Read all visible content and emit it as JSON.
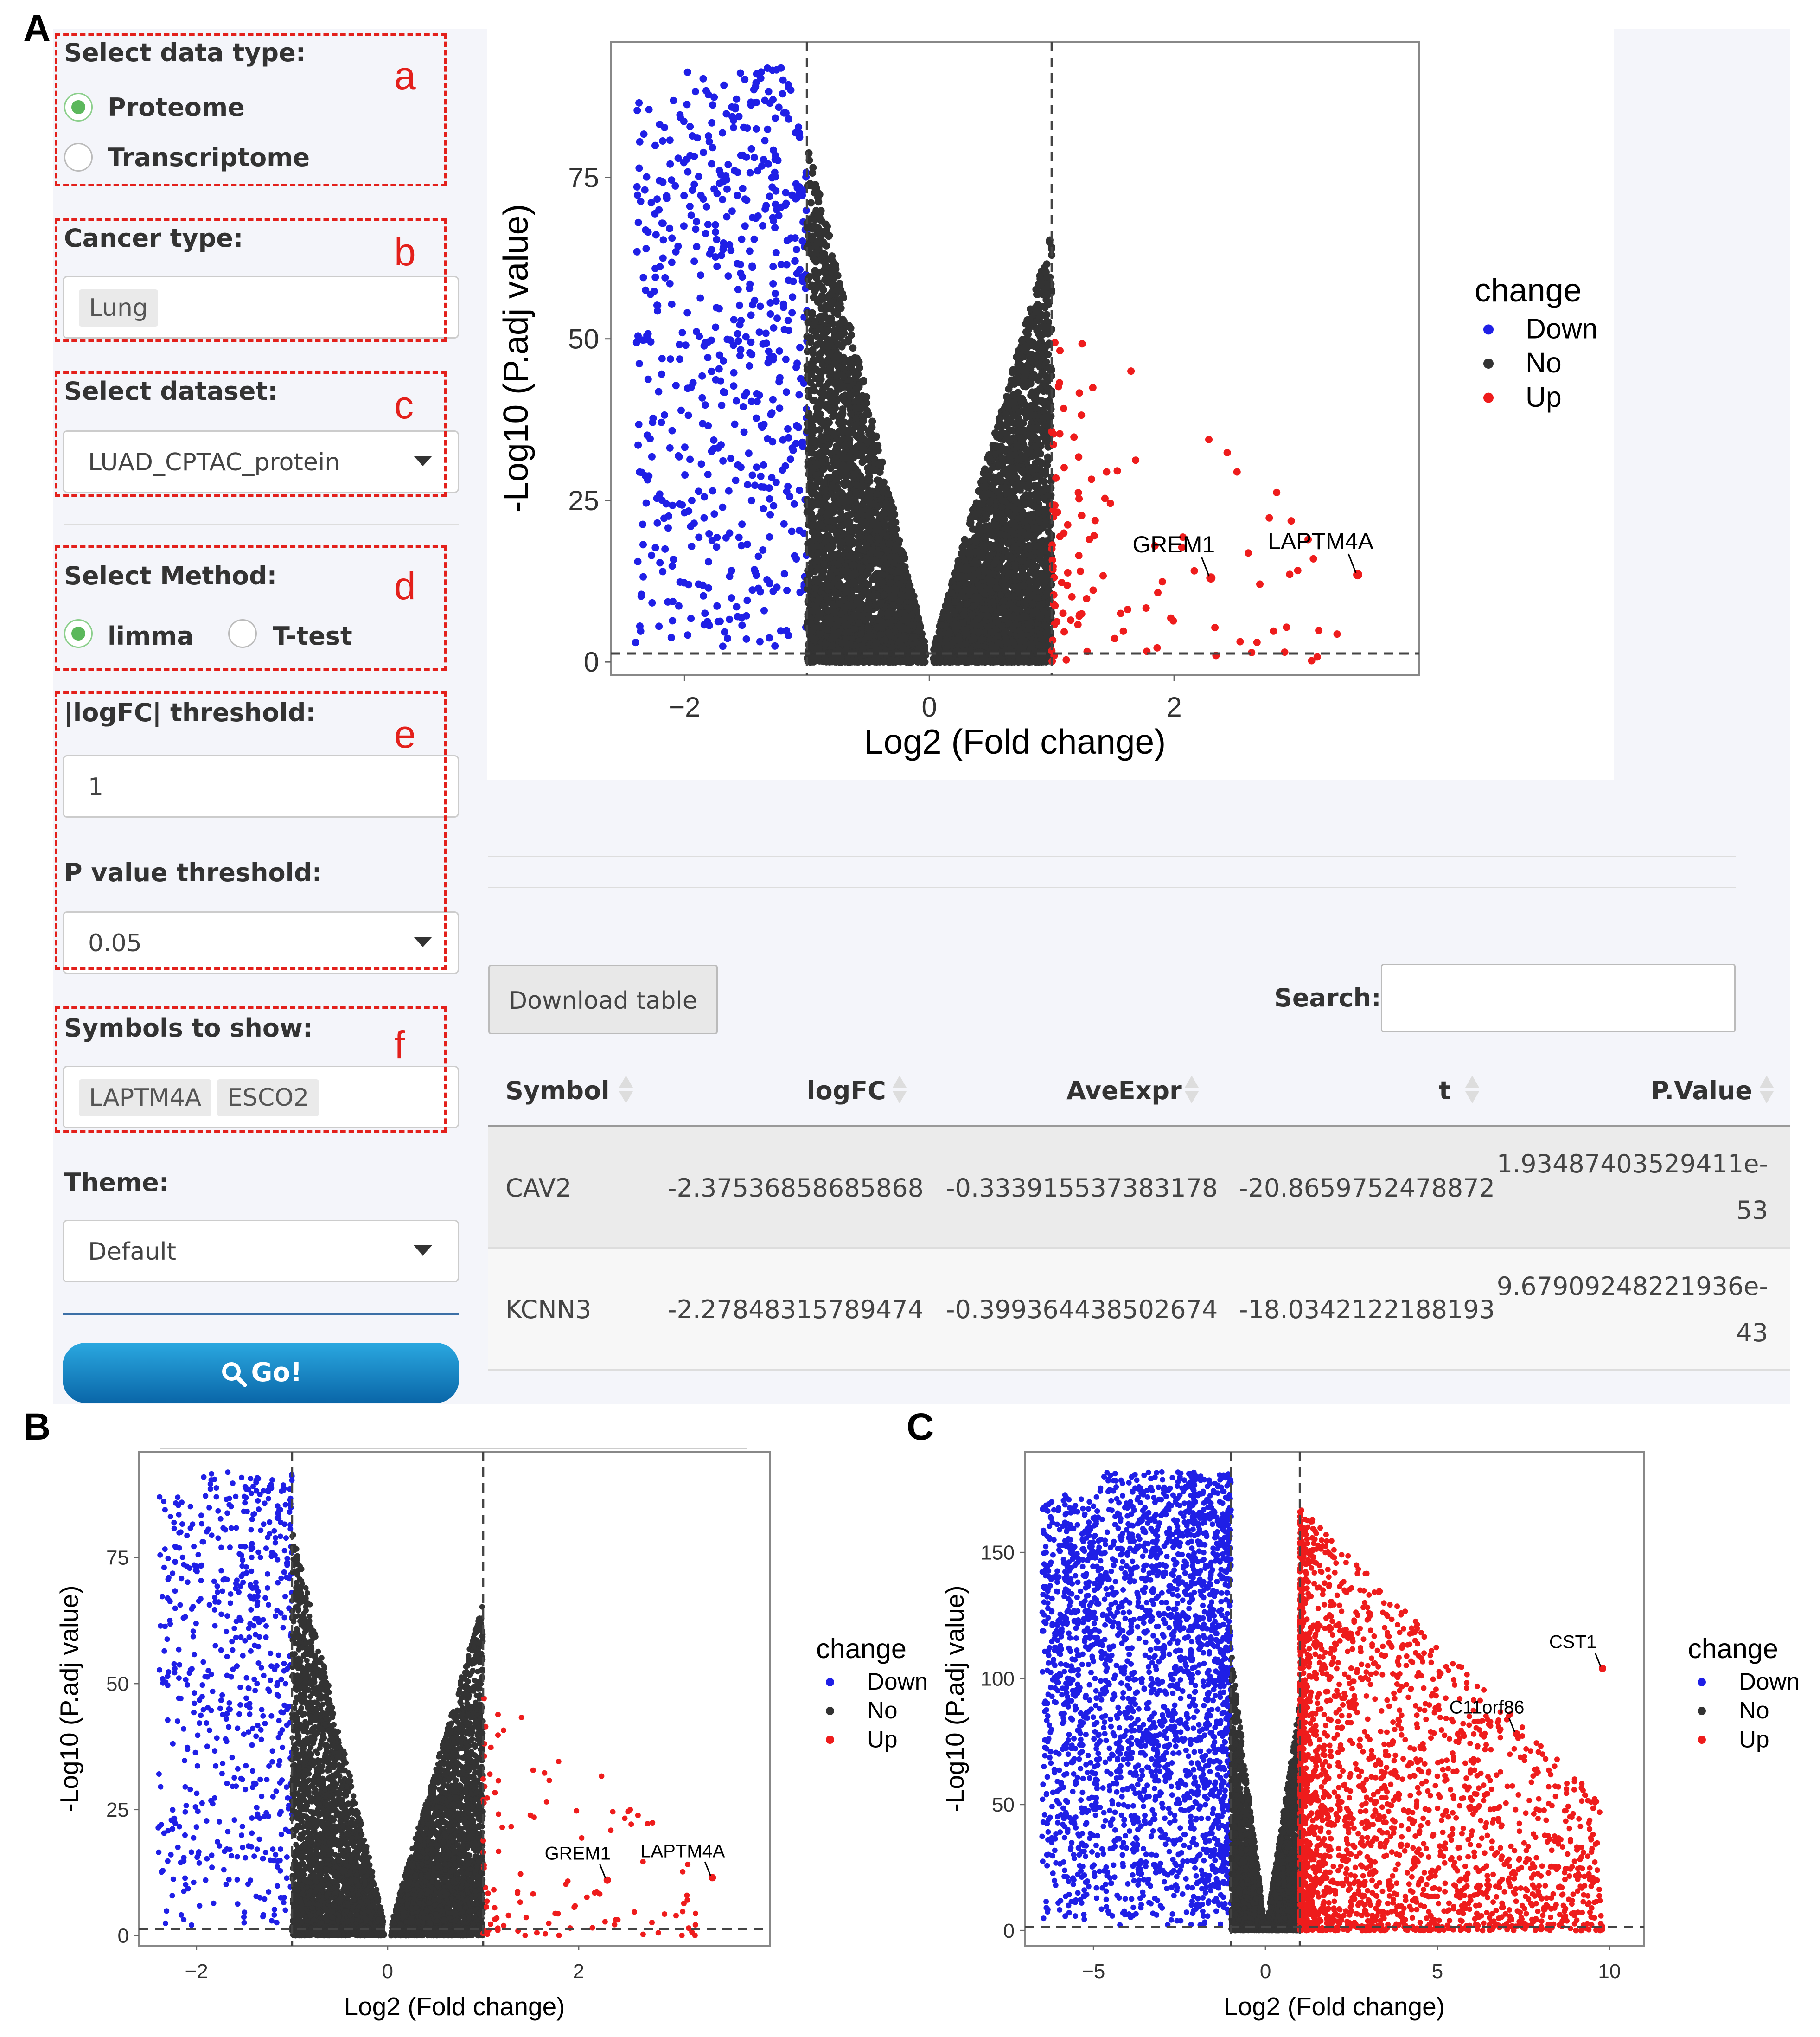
{
  "figure": {
    "panel_a": "A",
    "panel_b": "B",
    "panel_c": "C"
  },
  "sidebar": {
    "data_type": {
      "label": "Select data type:",
      "options": [
        "Proteome",
        "Transcriptome"
      ],
      "selected": "Proteome",
      "marker": "a"
    },
    "cancer_type": {
      "label": "Cancer type:",
      "value": "Lung",
      "marker": "b"
    },
    "dataset": {
      "label": "Select dataset:",
      "value": "LUAD_CPTAC_protein",
      "marker": "c"
    },
    "method": {
      "label": "Select Method:",
      "options": [
        "limma",
        "T-test"
      ],
      "selected": "limma",
      "marker": "d"
    },
    "logfc": {
      "label": "|logFC| threshold:",
      "value": "1",
      "marker": "e"
    },
    "pvalue": {
      "label": "P value threshold:",
      "value": "0.05"
    },
    "symbols": {
      "label": "Symbols to show:",
      "chips": [
        "LAPTM4A",
        "ESCO2"
      ],
      "marker": "f"
    },
    "theme": {
      "label": "Theme:",
      "value": "Default"
    },
    "go_label": "Go!"
  },
  "table": {
    "download_label": "Download table",
    "search_label": "Search:",
    "search_value": "",
    "headers": [
      "Symbol",
      "logFC",
      "AveExpr",
      "t",
      "P.Value"
    ],
    "rows": [
      {
        "symbol": "CAV2",
        "logfc": "-2.37536858685868",
        "aveexpr": "-0.333915537383178",
        "t": "-20.8659752478872",
        "pvalue_1": "1.93487403529411e-",
        "pvalue_2": "53"
      },
      {
        "symbol": "KCNN3",
        "logfc": "-2.27848315789474",
        "aveexpr": "-0.399364438502674",
        "t": "-18.0342122188193",
        "pvalue_1": "9.67909248221936e-",
        "pvalue_2": "43"
      }
    ]
  },
  "colors": {
    "down": "#1f1fe6",
    "no": "#333333",
    "up": "#ee1c1c"
  },
  "chart_data": [
    {
      "type": "scatter",
      "id": "A",
      "title": "",
      "xlabel": "Log2 (Fold change)",
      "ylabel": "-Log10 (P.adj value)",
      "xlim": [
        -2.6,
        4.0
      ],
      "ylim": [
        -2,
        96
      ],
      "xticks": [
        -2,
        0,
        2
      ],
      "yticks": [
        0,
        25,
        50,
        75
      ],
      "thresholds": {
        "fc": 1,
        "y": 1.3
      },
      "legend": {
        "title": "change",
        "entries": [
          "Down",
          "No",
          "Up"
        ],
        "position": "right"
      },
      "annotations": [
        {
          "label": "GREM1",
          "x": 2.3,
          "y": 13
        },
        {
          "label": "LAPTM4A",
          "x": 3.5,
          "y": 13.5
        }
      ],
      "series": [
        {
          "name": "Down",
          "xmin": -2.4,
          "xmax": -1.0,
          "ymax": 92,
          "approx_points": 600
        },
        {
          "name": "No",
          "xmin": -1.0,
          "xmax": 1.0,
          "ymax": 81,
          "approx_points": 6000
        },
        {
          "name": "Up",
          "xmin": 1.0,
          "xmax": 3.5,
          "ymax": 56,
          "approx_points": 110
        }
      ]
    },
    {
      "type": "scatter",
      "id": "B",
      "title": "",
      "xlabel": "Log2 (Fold change)",
      "ylabel": "-Log10 (P.adj value)",
      "xlim": [
        -2.6,
        4.0
      ],
      "ylim": [
        -2,
        96
      ],
      "xticks": [
        -2,
        0,
        2
      ],
      "yticks": [
        0,
        25,
        50,
        75
      ],
      "thresholds": {
        "fc": 1,
        "y": 1.3
      },
      "legend": {
        "title": "change",
        "entries": [
          "Down",
          "No",
          "Up"
        ],
        "position": "right"
      },
      "annotations": [
        {
          "label": "GREM1",
          "x": 2.3,
          "y": 11
        },
        {
          "label": "LAPTM4A",
          "x": 3.4,
          "y": 11.5
        }
      ],
      "series": [
        {
          "name": "Down",
          "xmin": -2.4,
          "xmax": -1.0,
          "ymax": 92,
          "approx_points": 600
        },
        {
          "name": "No",
          "xmin": -1.0,
          "xmax": 1.0,
          "ymax": 81,
          "approx_points": 6000
        },
        {
          "name": "Up",
          "xmin": 1.0,
          "xmax": 3.4,
          "ymax": 50,
          "approx_points": 110
        }
      ]
    },
    {
      "type": "scatter",
      "id": "C",
      "title": "",
      "xlabel": "Log2 (Fold change)",
      "ylabel": "-Log10 (P.adj value)",
      "xlim": [
        -7,
        11
      ],
      "ylim": [
        -6,
        190
      ],
      "xticks": [
        -5,
        0,
        5,
        10
      ],
      "yticks": [
        0,
        50,
        100,
        150
      ],
      "thresholds": {
        "fc": 1,
        "y": 1.3
      },
      "legend": {
        "title": "change",
        "entries": [
          "Down",
          "No",
          "Up"
        ],
        "position": "right"
      },
      "annotations": [
        {
          "label": "CST1",
          "x": 9.8,
          "y": 104
        },
        {
          "label": "C11orf86",
          "x": 7.3,
          "y": 78
        }
      ],
      "series": [
        {
          "name": "Down",
          "xmin": -6.5,
          "xmax": -1.0,
          "ymax": 182,
          "approx_points": 2600
        },
        {
          "name": "No",
          "xmin": -1.0,
          "xmax": 1.0,
          "ymax": 112,
          "approx_points": 3000
        },
        {
          "name": "Up",
          "xmin": 1.0,
          "xmax": 9.8,
          "ymax": 168,
          "approx_points": 2400
        }
      ]
    }
  ]
}
